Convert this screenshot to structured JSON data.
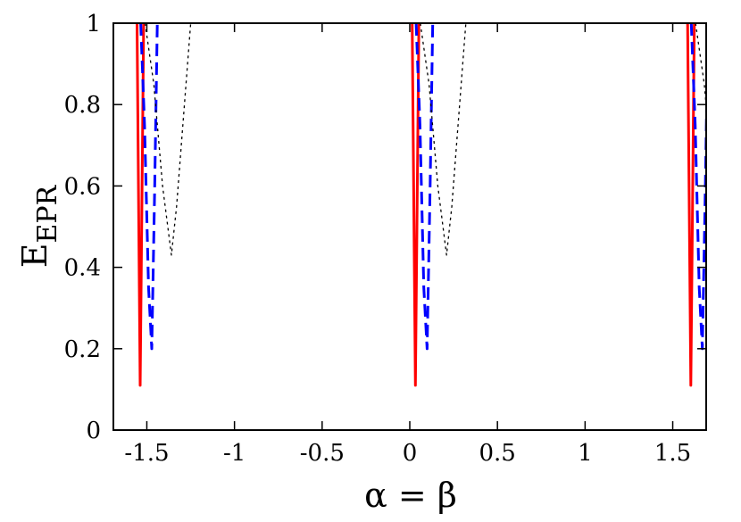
{
  "chart_data": {
    "type": "line",
    "title": "",
    "xlabel": "α = β",
    "ylabel": {
      "main": "E",
      "sub": "EPR"
    },
    "xlim": [
      -1.6908,
      1.6908
    ],
    "ylim": [
      0,
      1
    ],
    "grid": false,
    "legend": "none",
    "xticks": [
      {
        "value": -1.5,
        "label": "-1.5"
      },
      {
        "value": -1,
        "label": "-1"
      },
      {
        "value": -0.5,
        "label": "-0.5"
      },
      {
        "value": 0,
        "label": "0"
      },
      {
        "value": 0.5,
        "label": "0.5"
      },
      {
        "value": 1,
        "label": "1"
      },
      {
        "value": 1.5,
        "label": "1.5"
      }
    ],
    "yticks": [
      {
        "value": 0,
        "label": "0"
      },
      {
        "value": 0.2,
        "label": "0.2"
      },
      {
        "value": 0.4,
        "label": "0.4"
      },
      {
        "value": 0.6,
        "label": "0.6"
      },
      {
        "value": 0.8,
        "label": "0.8"
      },
      {
        "value": 1,
        "label": "1"
      }
    ],
    "series": [
      {
        "color": "#ff0000",
        "style": "solid",
        "width": 3,
        "segments": [
          {
            "x": [
              -1.556,
              -1.538,
              -1.518
            ],
            "y": [
              1.0,
              0.11,
              1.0
            ]
          },
          {
            "x": [
              0.014,
              0.032,
              0.052
            ],
            "y": [
              1.0,
              0.11,
              1.0
            ]
          },
          {
            "x": [
              1.585,
              1.603,
              1.623
            ],
            "y": [
              1.0,
              0.11,
              1.0
            ]
          }
        ]
      },
      {
        "color": "#0000ff",
        "style": "dashed",
        "width": 3,
        "segments": [
          {
            "x": [
              -1.535,
              -1.513,
              -1.49,
              -1.472,
              -1.455,
              -1.44
            ],
            "y": [
              1.0,
              0.75,
              0.35,
              0.2,
              0.6,
              1.0
            ]
          },
          {
            "x": [
              0.036,
              0.058,
              0.08,
              0.099,
              0.116,
              0.131
            ],
            "y": [
              1.0,
              0.75,
              0.35,
              0.2,
              0.6,
              1.0
            ]
          },
          {
            "x": [
              1.606,
              1.628,
              1.651,
              1.669,
              1.686,
              1.701
            ],
            "y": [
              1.0,
              0.75,
              0.35,
              0.2,
              0.6,
              1.0
            ]
          }
        ]
      },
      {
        "color": "#000000",
        "style": "dotted",
        "width": 1.3,
        "segments": [
          {
            "x": [
              -1.51,
              -1.46,
              -1.41,
              -1.36,
              -1.33,
              -1.25
            ],
            "y": [
              1.0,
              0.85,
              0.6,
              0.43,
              0.55,
              1.0
            ]
          },
          {
            "x": [
              0.06,
              0.11,
              0.16,
              0.21,
              0.24,
              0.32
            ],
            "y": [
              1.0,
              0.85,
              0.6,
              0.43,
              0.55,
              1.0
            ]
          },
          {
            "x": [
              1.63,
              1.68,
              1.73
            ],
            "y": [
              1.0,
              0.85,
              0.6
            ]
          }
        ]
      }
    ]
  }
}
